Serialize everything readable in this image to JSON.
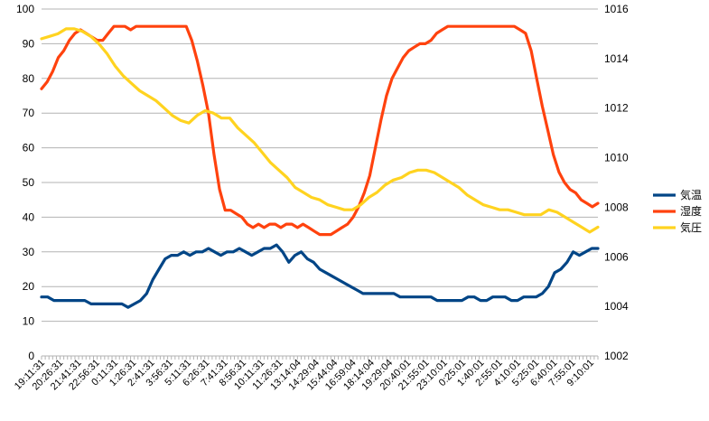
{
  "chart_data": {
    "type": "line",
    "y_left": {
      "min": 0,
      "max": 100,
      "step": 10,
      "ticks": [
        "0",
        "10",
        "20",
        "30",
        "40",
        "50",
        "60",
        "70",
        "80",
        "90",
        "100"
      ]
    },
    "y_right": {
      "min": 1002,
      "max": 1016,
      "step": 2,
      "ticks": [
        "1002",
        "1004",
        "1006",
        "1008",
        "1010",
        "1012",
        "1014",
        "1016"
      ]
    },
    "x_tick_labels": [
      "19:11:31",
      "20:26:31",
      "21:41:31",
      "22:56:31",
      "0:11:31",
      "1:26:31",
      "2:41:31",
      "3:56:31",
      "5:11:31",
      "6:26:31",
      "7:41:31",
      "8:56:31",
      "10:11:31",
      "11:26:31",
      "13:14:04",
      "14:29:04",
      "15:44:04",
      "16:59:04",
      "18:14:04",
      "19:29:04",
      "20:40:01",
      "21:55:01",
      "23:10:01",
      "0:25:01",
      "1:40:01",
      "2:55:01",
      "4:10:01",
      "5:25:01",
      "6:40:01",
      "7:55:01",
      "9:10:01"
    ],
    "grid": "horizontal",
    "legend_position": "right",
    "series": [
      {
        "name": "気温",
        "color": "#004586",
        "axis": "left",
        "values": [
          17,
          17,
          16,
          16,
          16,
          16,
          16,
          16,
          15,
          15,
          15,
          15,
          15,
          15,
          14,
          15,
          16,
          18,
          22,
          25,
          28,
          29,
          29,
          30,
          29,
          30,
          30,
          31,
          30,
          29,
          30,
          30,
          31,
          30,
          29,
          30,
          31,
          31,
          32,
          30,
          27,
          29,
          30,
          28,
          27,
          25,
          24,
          23,
          22,
          21,
          20,
          19,
          18,
          18,
          18,
          18,
          18,
          18,
          17,
          17,
          17,
          17,
          17,
          17,
          16,
          16,
          16,
          16,
          16,
          17,
          17,
          16,
          16,
          17,
          17,
          17,
          16,
          16,
          17,
          17,
          17,
          18,
          20,
          24,
          25,
          27,
          30,
          29,
          30,
          31,
          31
        ]
      },
      {
        "name": "湿度",
        "color": "#ff420e",
        "axis": "left",
        "values": [
          77,
          79,
          82,
          86,
          88,
          91,
          93,
          94,
          93,
          92,
          91,
          91,
          93,
          95,
          95,
          95,
          94,
          95,
          95,
          95,
          95,
          95,
          95,
          95,
          95,
          95,
          95,
          91,
          85,
          78,
          70,
          58,
          48,
          42,
          42,
          41,
          40,
          38,
          37,
          38,
          37,
          38,
          38,
          37,
          38,
          38,
          37,
          38,
          37,
          36,
          35,
          35,
          35,
          36,
          37,
          38,
          40,
          43,
          47,
          52,
          60,
          68,
          75,
          80,
          83,
          86,
          88,
          89,
          90,
          90,
          91,
          93,
          94,
          95,
          95,
          95,
          95,
          95,
          95,
          95,
          95,
          95,
          95,
          95,
          95,
          95,
          94,
          93,
          88,
          80,
          72,
          65,
          58,
          53,
          50,
          48,
          47,
          45,
          44,
          43,
          44
        ]
      },
      {
        "name": "気圧",
        "color": "#ffd320",
        "axis": "right",
        "values": [
          1014.8,
          1014.9,
          1015.0,
          1015.2,
          1015.2,
          1015.1,
          1014.9,
          1014.6,
          1014.2,
          1013.7,
          1013.3,
          1013.0,
          1012.7,
          1012.5,
          1012.3,
          1012.0,
          1011.7,
          1011.5,
          1011.4,
          1011.7,
          1011.9,
          1011.8,
          1011.6,
          1011.6,
          1011.2,
          1010.9,
          1010.6,
          1010.2,
          1009.8,
          1009.5,
          1009.2,
          1008.8,
          1008.6,
          1008.4,
          1008.3,
          1008.1,
          1008.0,
          1007.9,
          1007.9,
          1008.1,
          1008.4,
          1008.6,
          1008.9,
          1009.1,
          1009.2,
          1009.4,
          1009.5,
          1009.5,
          1009.4,
          1009.2,
          1009.0,
          1008.8,
          1008.5,
          1008.3,
          1008.1,
          1008.0,
          1007.9,
          1007.9,
          1007.8,
          1007.7,
          1007.7,
          1007.7,
          1007.9,
          1007.8,
          1007.6,
          1007.4,
          1007.2,
          1007.0,
          1007.2
        ]
      }
    ]
  }
}
